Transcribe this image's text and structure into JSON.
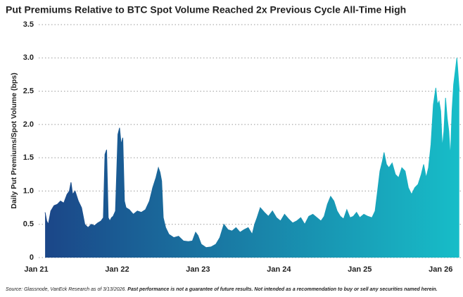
{
  "chart_data": {
    "type": "area",
    "title": "Put Premiums Relative to BTC Spot Volume Reached 2x Previous Cycle All-Time High",
    "y_label": "Daily Put Premiums/Spot Volume (bps)",
    "source": "Source: Glassnode, VanEck Research as of 3/13/2026.",
    "disclaimer": "Past performance is not a guarantee of future results. Not intended as a recommendation to buy or sell any securities named herein.",
    "x": [
      2021.11,
      2021.13,
      2021.15,
      2021.18,
      2021.22,
      2021.26,
      2021.3,
      2021.34,
      2021.38,
      2021.41,
      2021.43,
      2021.45,
      2021.48,
      2021.52,
      2021.56,
      2021.6,
      2021.64,
      2021.68,
      2021.72,
      2021.76,
      2021.8,
      2021.83,
      2021.85,
      2021.87,
      2021.89,
      2021.91,
      2021.93,
      2021.95,
      2021.98,
      2022.01,
      2022.03,
      2022.05,
      2022.07,
      2022.09,
      2022.11,
      2022.15,
      2022.2,
      2022.25,
      2022.3,
      2022.35,
      2022.4,
      2022.44,
      2022.48,
      2022.51,
      2022.53,
      2022.55,
      2022.57,
      2022.6,
      2022.64,
      2022.7,
      2022.76,
      2022.82,
      2022.88,
      2022.93,
      2022.97,
      2023.0,
      2023.04,
      2023.1,
      2023.16,
      2023.22,
      2023.27,
      2023.32,
      2023.37,
      2023.42,
      2023.47,
      2023.52,
      2023.57,
      2023.62,
      2023.67,
      2023.7,
      2023.73,
      2023.77,
      2023.82,
      2023.87,
      2023.92,
      2023.97,
      2024.02,
      2024.07,
      2024.12,
      2024.17,
      2024.22,
      2024.27,
      2024.32,
      2024.37,
      2024.42,
      2024.47,
      2024.52,
      2024.56,
      2024.6,
      2024.64,
      2024.68,
      2024.72,
      2024.76,
      2024.8,
      2024.84,
      2024.88,
      2024.92,
      2024.96,
      2025.0,
      2025.05,
      2025.1,
      2025.15,
      2025.19,
      2025.22,
      2025.25,
      2025.28,
      2025.3,
      2025.33,
      2025.36,
      2025.4,
      2025.44,
      2025.48,
      2025.52,
      2025.56,
      2025.6,
      2025.64,
      2025.68,
      2025.72,
      2025.76,
      2025.79,
      2025.82,
      2025.85,
      2025.88,
      2025.91,
      2025.94,
      2025.96,
      2025.98,
      2026.0,
      2026.02,
      2026.04,
      2026.06,
      2026.08,
      2026.1,
      2026.12,
      2026.14,
      2026.16,
      2026.18,
      2026.2,
      2026.21,
      2026.23
    ],
    "values": [
      0.68,
      0.55,
      0.5,
      0.7,
      0.78,
      0.8,
      0.85,
      0.82,
      0.95,
      1.0,
      1.13,
      0.95,
      1.0,
      0.85,
      0.75,
      0.5,
      0.45,
      0.5,
      0.48,
      0.52,
      0.55,
      0.6,
      1.55,
      1.62,
      0.6,
      0.55,
      0.6,
      0.62,
      0.7,
      1.85,
      1.95,
      1.7,
      1.8,
      0.85,
      0.75,
      0.72,
      0.65,
      0.7,
      0.68,
      0.72,
      0.85,
      1.05,
      1.2,
      1.35,
      1.28,
      1.15,
      0.6,
      0.45,
      0.35,
      0.3,
      0.32,
      0.25,
      0.24,
      0.25,
      0.38,
      0.33,
      0.2,
      0.15,
      0.16,
      0.2,
      0.3,
      0.5,
      0.42,
      0.4,
      0.45,
      0.38,
      0.42,
      0.45,
      0.35,
      0.5,
      0.6,
      0.75,
      0.68,
      0.62,
      0.7,
      0.6,
      0.55,
      0.65,
      0.58,
      0.52,
      0.55,
      0.6,
      0.5,
      0.62,
      0.65,
      0.6,
      0.55,
      0.62,
      0.8,
      0.92,
      0.85,
      0.7,
      0.62,
      0.58,
      0.72,
      0.6,
      0.62,
      0.68,
      0.6,
      0.65,
      0.62,
      0.6,
      0.7,
      1.0,
      1.3,
      1.45,
      1.58,
      1.4,
      1.35,
      1.42,
      1.25,
      1.2,
      1.35,
      1.3,
      1.05,
      0.95,
      1.05,
      1.1,
      1.25,
      1.4,
      1.2,
      1.35,
      1.7,
      2.3,
      2.55,
      2.3,
      2.35,
      2.2,
      1.65,
      1.9,
      2.4,
      2.1,
      1.9,
      1.5,
      2.2,
      2.6,
      2.8,
      3.0,
      2.85,
      2.5
    ],
    "gradient": [
      "#1b4688",
      "#17bdc8"
    ],
    "xlim": [
      2020.9,
      2026.25
    ],
    "xticks": [
      {
        "value": 2021,
        "label": "Jan 21"
      },
      {
        "value": 2022,
        "label": "Jan 22"
      },
      {
        "value": 2023,
        "label": "Jan 23"
      },
      {
        "value": 2024,
        "label": "Jan 24"
      },
      {
        "value": 2025,
        "label": "Jan 25"
      },
      {
        "value": 2026,
        "label": "Jan 26"
      }
    ],
    "ylim": [
      0,
      3.5
    ],
    "yticks": [
      0,
      0.5,
      {
        "value": 1,
        "label": "1.0"
      },
      1.5,
      {
        "value": 2,
        "label": "2.0"
      },
      2.5,
      {
        "value": 3,
        "label": "3.0"
      },
      3.5
    ],
    "grid": true
  }
}
